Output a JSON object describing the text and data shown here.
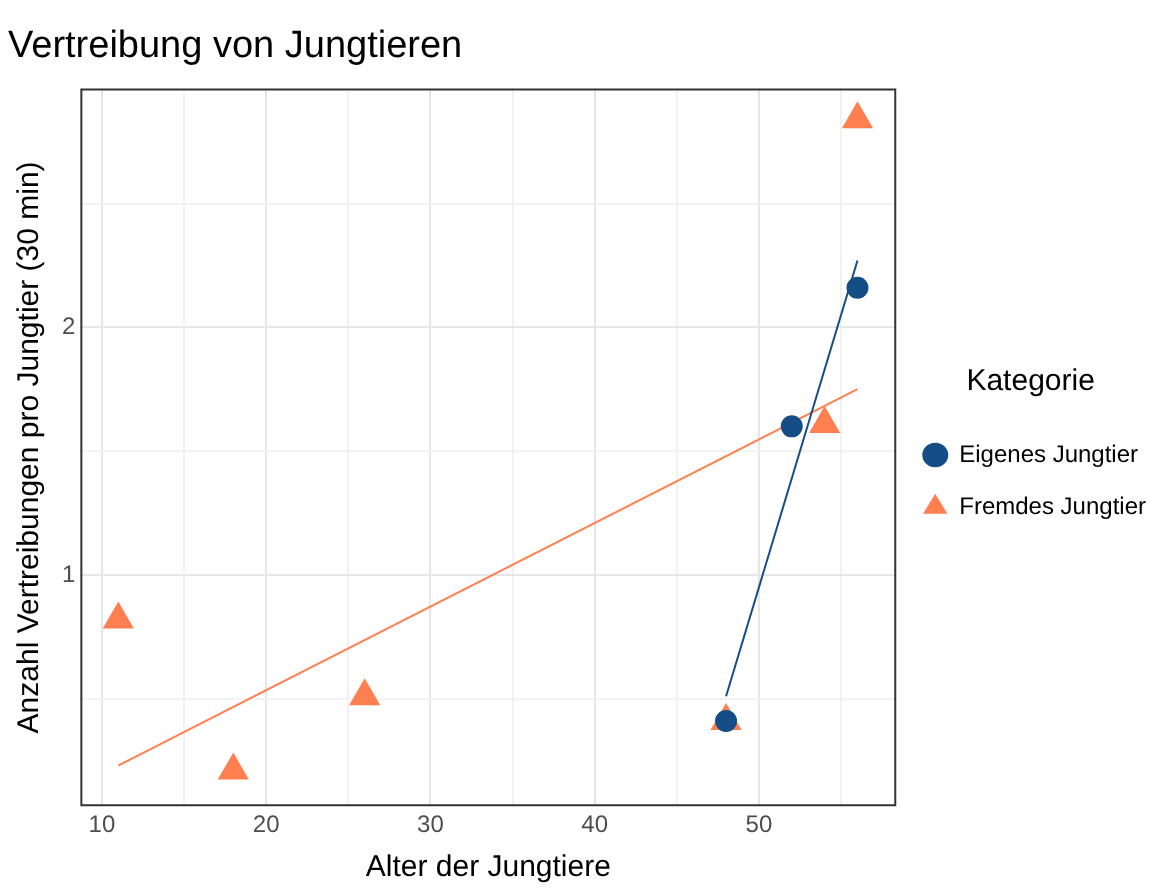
{
  "chart_data": {
    "type": "scatter",
    "title": "Vertreibung von Jungtieren",
    "xlabel": "Alter der Jungtiere",
    "ylabel": "Anzahl Vertreibungen pro Jungtier (30 min)",
    "legend_title": "Kategorie",
    "xlim": [
      8.75,
      58.3
    ],
    "ylim": [
      0.07,
      2.96
    ],
    "xticks": [
      {
        "value": 10,
        "label": "10"
      },
      {
        "value": 15,
        "label": null
      },
      {
        "value": 20,
        "label": "20"
      },
      {
        "value": 25,
        "label": null
      },
      {
        "value": 30,
        "label": "30"
      },
      {
        "value": 35,
        "label": null
      },
      {
        "value": 40,
        "label": "40"
      },
      {
        "value": 45,
        "label": null
      },
      {
        "value": 50,
        "label": "50"
      },
      {
        "value": 55,
        "label": null
      }
    ],
    "yticks": [
      {
        "value": 0.5,
        "label": null
      },
      1,
      {
        "value": 1.5,
        "label": null
      },
      2,
      {
        "value": 2.5,
        "label": null
      }
    ],
    "grid": true,
    "legend": "right",
    "series": [
      {
        "name": "Eigenes Jungtier",
        "marker": "circle",
        "color": "#154e86",
        "x": [
          48,
          52,
          56
        ],
        "values": [
          0.41,
          1.6,
          2.16
        ]
      },
      {
        "name": "Fremdes Jungtier",
        "marker": "triangle",
        "color": "#ff7f50",
        "x": [
          11,
          18,
          26,
          48,
          54,
          56
        ],
        "values": [
          0.82,
          0.21,
          0.51,
          0.41,
          1.61,
          2.84
        ]
      },
      {
        "type": "line",
        "marker": "none",
        "color": "#154e86",
        "x": [
          48,
          56
        ],
        "values": [
          0.51,
          2.27
        ]
      },
      {
        "type": "line",
        "marker": "none",
        "color": "#ff7f50",
        "x": [
          11,
          56
        ],
        "values": [
          0.23,
          1.75
        ]
      }
    ]
  }
}
